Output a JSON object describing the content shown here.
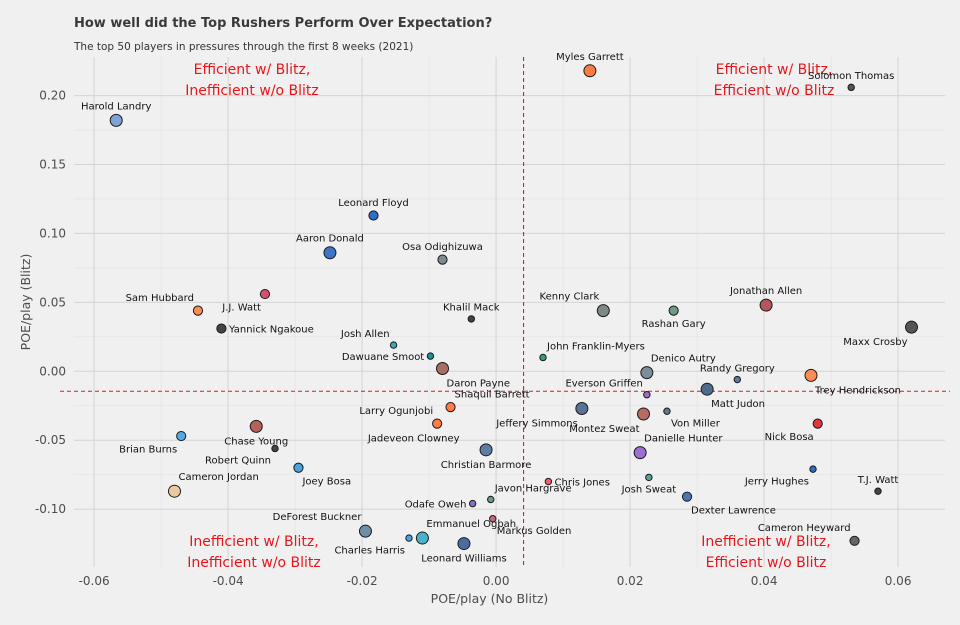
{
  "title": "How well did the Top Rushers Perform Over Expectation?",
  "subtitle": "The top 50 players in pressures through the first 8 weeks (2021)",
  "chart_data": {
    "type": "scatter",
    "title": "How well did the Top Rushers Perform Over Expectation?",
    "subtitle": "The top 50 players in pressures through the first 8 weeks (2021)",
    "xlabel": "POE/play (No Blitz)",
    "ylabel": "POE/play (Blitz)",
    "xlim": [
      -0.063,
      0.067
    ],
    "ylim": [
      -0.142,
      0.228
    ],
    "xticks": [
      -0.06,
      -0.04,
      -0.02,
      0.0,
      0.02,
      0.04,
      0.06
    ],
    "xtick_labels": [
      "-0.06",
      "-0.04",
      "-0.02",
      "0.00",
      "0.02",
      "0.04",
      "0.06"
    ],
    "yticks": [
      -0.1,
      -0.05,
      0.0,
      0.05,
      0.1,
      0.15,
      0.2
    ],
    "ytick_labels": [
      "-0.10",
      "-0.05",
      "0.00",
      "0.05",
      "0.10",
      "0.15",
      "0.20"
    ],
    "grid": true,
    "reference_lines": {
      "x": 0.0041,
      "y": -0.0145,
      "color": "#e8151b",
      "style": "dashed"
    },
    "quadrant_labels": [
      {
        "lines": [
          "Efficient w/ Blitz,",
          "Inefficient w/o Blitz"
        ],
        "quadrant": "top-left"
      },
      {
        "lines": [
          "Efficient w/ Blitz,",
          "Efficient w/o Blitz"
        ],
        "quadrant": "top-right"
      },
      {
        "lines": [
          "Inefficient w/ Blitz,",
          "Inefficient w/o Blitz"
        ],
        "quadrant": "bottom-left"
      },
      {
        "lines": [
          "Inefficient w/ Blitz,",
          "Efficient w/o Blitz"
        ],
        "quadrant": "bottom-right"
      }
    ],
    "points": [
      {
        "name": "Harold Landry",
        "x": -0.0567,
        "y": 0.182,
        "color": "#7ca4d8",
        "size": "large",
        "label_side": "above"
      },
      {
        "name": "Myles Garrett",
        "x": 0.014,
        "y": 0.218,
        "color": "#ff7c43",
        "size": "large",
        "label_side": "above"
      },
      {
        "name": "Solomon Thomas",
        "x": 0.053,
        "y": 0.206,
        "color": "#555555",
        "size": "small",
        "label_side": "above"
      },
      {
        "name": "Leonard Floyd",
        "x": -0.0183,
        "y": 0.113,
        "color": "#2e6ecb",
        "size": "medium",
        "label_side": "above"
      },
      {
        "name": "Aaron Donald",
        "x": -0.0248,
        "y": 0.086,
        "color": "#3f73c8",
        "size": "large",
        "label_side": "above"
      },
      {
        "name": "Osa Odighizuwa",
        "x": -0.008,
        "y": 0.081,
        "color": "#7d8b8e",
        "size": "medium",
        "label_side": "above"
      },
      {
        "name": "J.J. Watt",
        "x": -0.0345,
        "y": 0.056,
        "color": "#d9506f",
        "size": "medium",
        "label_side": "below-left"
      },
      {
        "name": "Sam Hubbard",
        "x": -0.0445,
        "y": 0.044,
        "color": "#ff8c57",
        "size": "medium",
        "label_side": "above-left"
      },
      {
        "name": "Khalil Mack",
        "x": -0.0037,
        "y": 0.038,
        "color": "#444444",
        "size": "small",
        "label_side": "above"
      },
      {
        "name": "Kenny Clark",
        "x": 0.016,
        "y": 0.044,
        "color": "#7e8a86",
        "size": "large",
        "label_side": "above-left"
      },
      {
        "name": "Rashan Gary",
        "x": 0.0265,
        "y": 0.044,
        "color": "#6f9a86",
        "size": "medium",
        "label_side": "below"
      },
      {
        "name": "Jonathan Allen",
        "x": 0.0403,
        "y": 0.048,
        "color": "#b5555f",
        "size": "large",
        "label_side": "above"
      },
      {
        "name": "Maxx Crosby",
        "x": 0.062,
        "y": 0.032,
        "color": "#555555",
        "size": "large",
        "label_side": "below-left"
      },
      {
        "name": "Yannick Ngakoue",
        "x": -0.041,
        "y": 0.031,
        "color": "#444444",
        "size": "medium",
        "label_side": "right"
      },
      {
        "name": "Josh Allen",
        "x": -0.0153,
        "y": 0.019,
        "color": "#3aa8b5",
        "size": "small",
        "label_side": "above-left"
      },
      {
        "name": "Dawuane Smoot",
        "x": -0.0098,
        "y": 0.011,
        "color": "#1f8f9f",
        "size": "small",
        "label_side": "left"
      },
      {
        "name": "John Franklin-Myers",
        "x": 0.007,
        "y": 0.01,
        "color": "#3a9a7a",
        "size": "small",
        "label_side": "above-right"
      },
      {
        "name": "Denico Autry",
        "x": 0.0225,
        "y": -0.001,
        "color": "#7d8d99",
        "size": "large",
        "label_side": "above-right"
      },
      {
        "name": "Randy Gregory",
        "x": 0.036,
        "y": -0.006,
        "color": "#5a7aa8",
        "size": "small",
        "label_side": "above"
      },
      {
        "name": "Trey Hendrickson",
        "x": 0.047,
        "y": -0.003,
        "color": "#ff8c57",
        "size": "large",
        "label_side": "below-right"
      },
      {
        "name": "Daron Payne",
        "x": -0.008,
        "y": 0.002,
        "color": "#a86e63",
        "size": "large",
        "label_side": "below-right"
      },
      {
        "name": "Everson Griffen",
        "x": 0.0225,
        "y": -0.017,
        "color": "#9d6fc7",
        "size": "small",
        "label_side": "above-left"
      },
      {
        "name": "Matt Judon",
        "x": 0.0315,
        "y": -0.013,
        "color": "#4e6d8e",
        "size": "large",
        "label_side": "below-right"
      },
      {
        "name": "Shaquil Barrett",
        "x": -0.0068,
        "y": -0.026,
        "color": "#ff7c43",
        "size": "medium",
        "label_side": "above-right"
      },
      {
        "name": "Jeffery Simmons",
        "x": 0.0128,
        "y": -0.027,
        "color": "#5a7394",
        "size": "large",
        "label_side": "below-left"
      },
      {
        "name": "Montez Sweat",
        "x": 0.022,
        "y": -0.031,
        "color": "#b86b63",
        "size": "large",
        "label_side": "below-left"
      },
      {
        "name": "Von Miller",
        "x": 0.0255,
        "y": -0.029,
        "color": "#5d7a95",
        "size": "small",
        "label_side": "below-right"
      },
      {
        "name": "Larry Ogunjobi",
        "x": -0.0088,
        "y": -0.038,
        "color": "#ff7c43",
        "size": "medium",
        "label_side": "above-left"
      },
      {
        "name": "Jadeveon Clowney",
        "x": -0.005,
        "y": -0.048,
        "color": "#777777",
        "size": "none",
        "label_side": "left"
      },
      {
        "name": "Chase Young",
        "x": -0.0358,
        "y": -0.04,
        "color": "#b5605a",
        "size": "large",
        "label_side": "below"
      },
      {
        "name": "Nick Bosa",
        "x": 0.048,
        "y": -0.038,
        "color": "#e3363e",
        "size": "medium",
        "label_side": "below-left"
      },
      {
        "name": "Brian Burns",
        "x": -0.047,
        "y": -0.047,
        "color": "#55a9e6",
        "size": "medium",
        "label_side": "below-left"
      },
      {
        "name": "Danielle Hunter",
        "x": 0.0215,
        "y": -0.059,
        "color": "#9b6fd3",
        "size": "large",
        "label_side": "above-right"
      },
      {
        "name": "Robert Quinn",
        "x": -0.033,
        "y": -0.056,
        "color": "#444444",
        "size": "small",
        "label_side": "below-left"
      },
      {
        "name": "Christian Barmore",
        "x": -0.0015,
        "y": -0.057,
        "color": "#5e7da0",
        "size": "large",
        "label_side": "below"
      },
      {
        "name": "Joey Bosa",
        "x": -0.0295,
        "y": -0.07,
        "color": "#4aa3e0",
        "size": "medium",
        "label_side": "below-right"
      },
      {
        "name": "Jerry Hughes",
        "x": 0.0473,
        "y": -0.071,
        "color": "#2e6ecb",
        "size": "small",
        "label_side": "below-left"
      },
      {
        "name": "Chris Jones",
        "x": 0.0078,
        "y": -0.08,
        "color": "#f0606e",
        "size": "small",
        "label_side": "right"
      },
      {
        "name": "Josh Sweat",
        "x": 0.0228,
        "y": -0.077,
        "color": "#5aa39a",
        "size": "small",
        "label_side": "below"
      },
      {
        "name": "Cameron Jordan",
        "x": -0.048,
        "y": -0.087,
        "color": "#e8c9a0",
        "size": "large",
        "label_side": "above-right"
      },
      {
        "name": "T.J. Watt",
        "x": 0.057,
        "y": -0.087,
        "color": "#444444",
        "size": "small",
        "label_side": "above"
      },
      {
        "name": "Javon Hargrave",
        "x": -0.0008,
        "y": -0.093,
        "color": "#6a9a8a",
        "size": "small",
        "label_side": "above-right"
      },
      {
        "name": "Dexter Lawrence",
        "x": 0.0285,
        "y": -0.091,
        "color": "#4e73b0",
        "size": "medium",
        "label_side": "below-right"
      },
      {
        "name": "Odafe Oweh",
        "x": -0.0035,
        "y": -0.096,
        "color": "#8a6fc7",
        "size": "small",
        "label_side": "left"
      },
      {
        "name": "DeForest Buckner",
        "x": -0.0195,
        "y": -0.116,
        "color": "#6f8fa6",
        "size": "large",
        "label_side": "above-left"
      },
      {
        "name": "Markus Golden",
        "x": -0.0005,
        "y": -0.107,
        "color": "#c46a7e",
        "size": "small",
        "label_side": "below-right"
      },
      {
        "name": "Emmanuel Ogbah",
        "x": -0.011,
        "y": -0.121,
        "color": "#4ab2c8",
        "size": "large",
        "label_side": "above-right"
      },
      {
        "name": "Charles Harris",
        "x": -0.013,
        "y": -0.121,
        "color": "#4aa3e0",
        "size": "small",
        "label_side": "below-left"
      },
      {
        "name": "Leonard Williams",
        "x": -0.0048,
        "y": -0.125,
        "color": "#4e6aa0",
        "size": "large",
        "label_side": "below"
      },
      {
        "name": "Cameron Heyward",
        "x": 0.0535,
        "y": -0.123,
        "color": "#666666",
        "size": "medium",
        "label_side": "above-left"
      }
    ]
  }
}
